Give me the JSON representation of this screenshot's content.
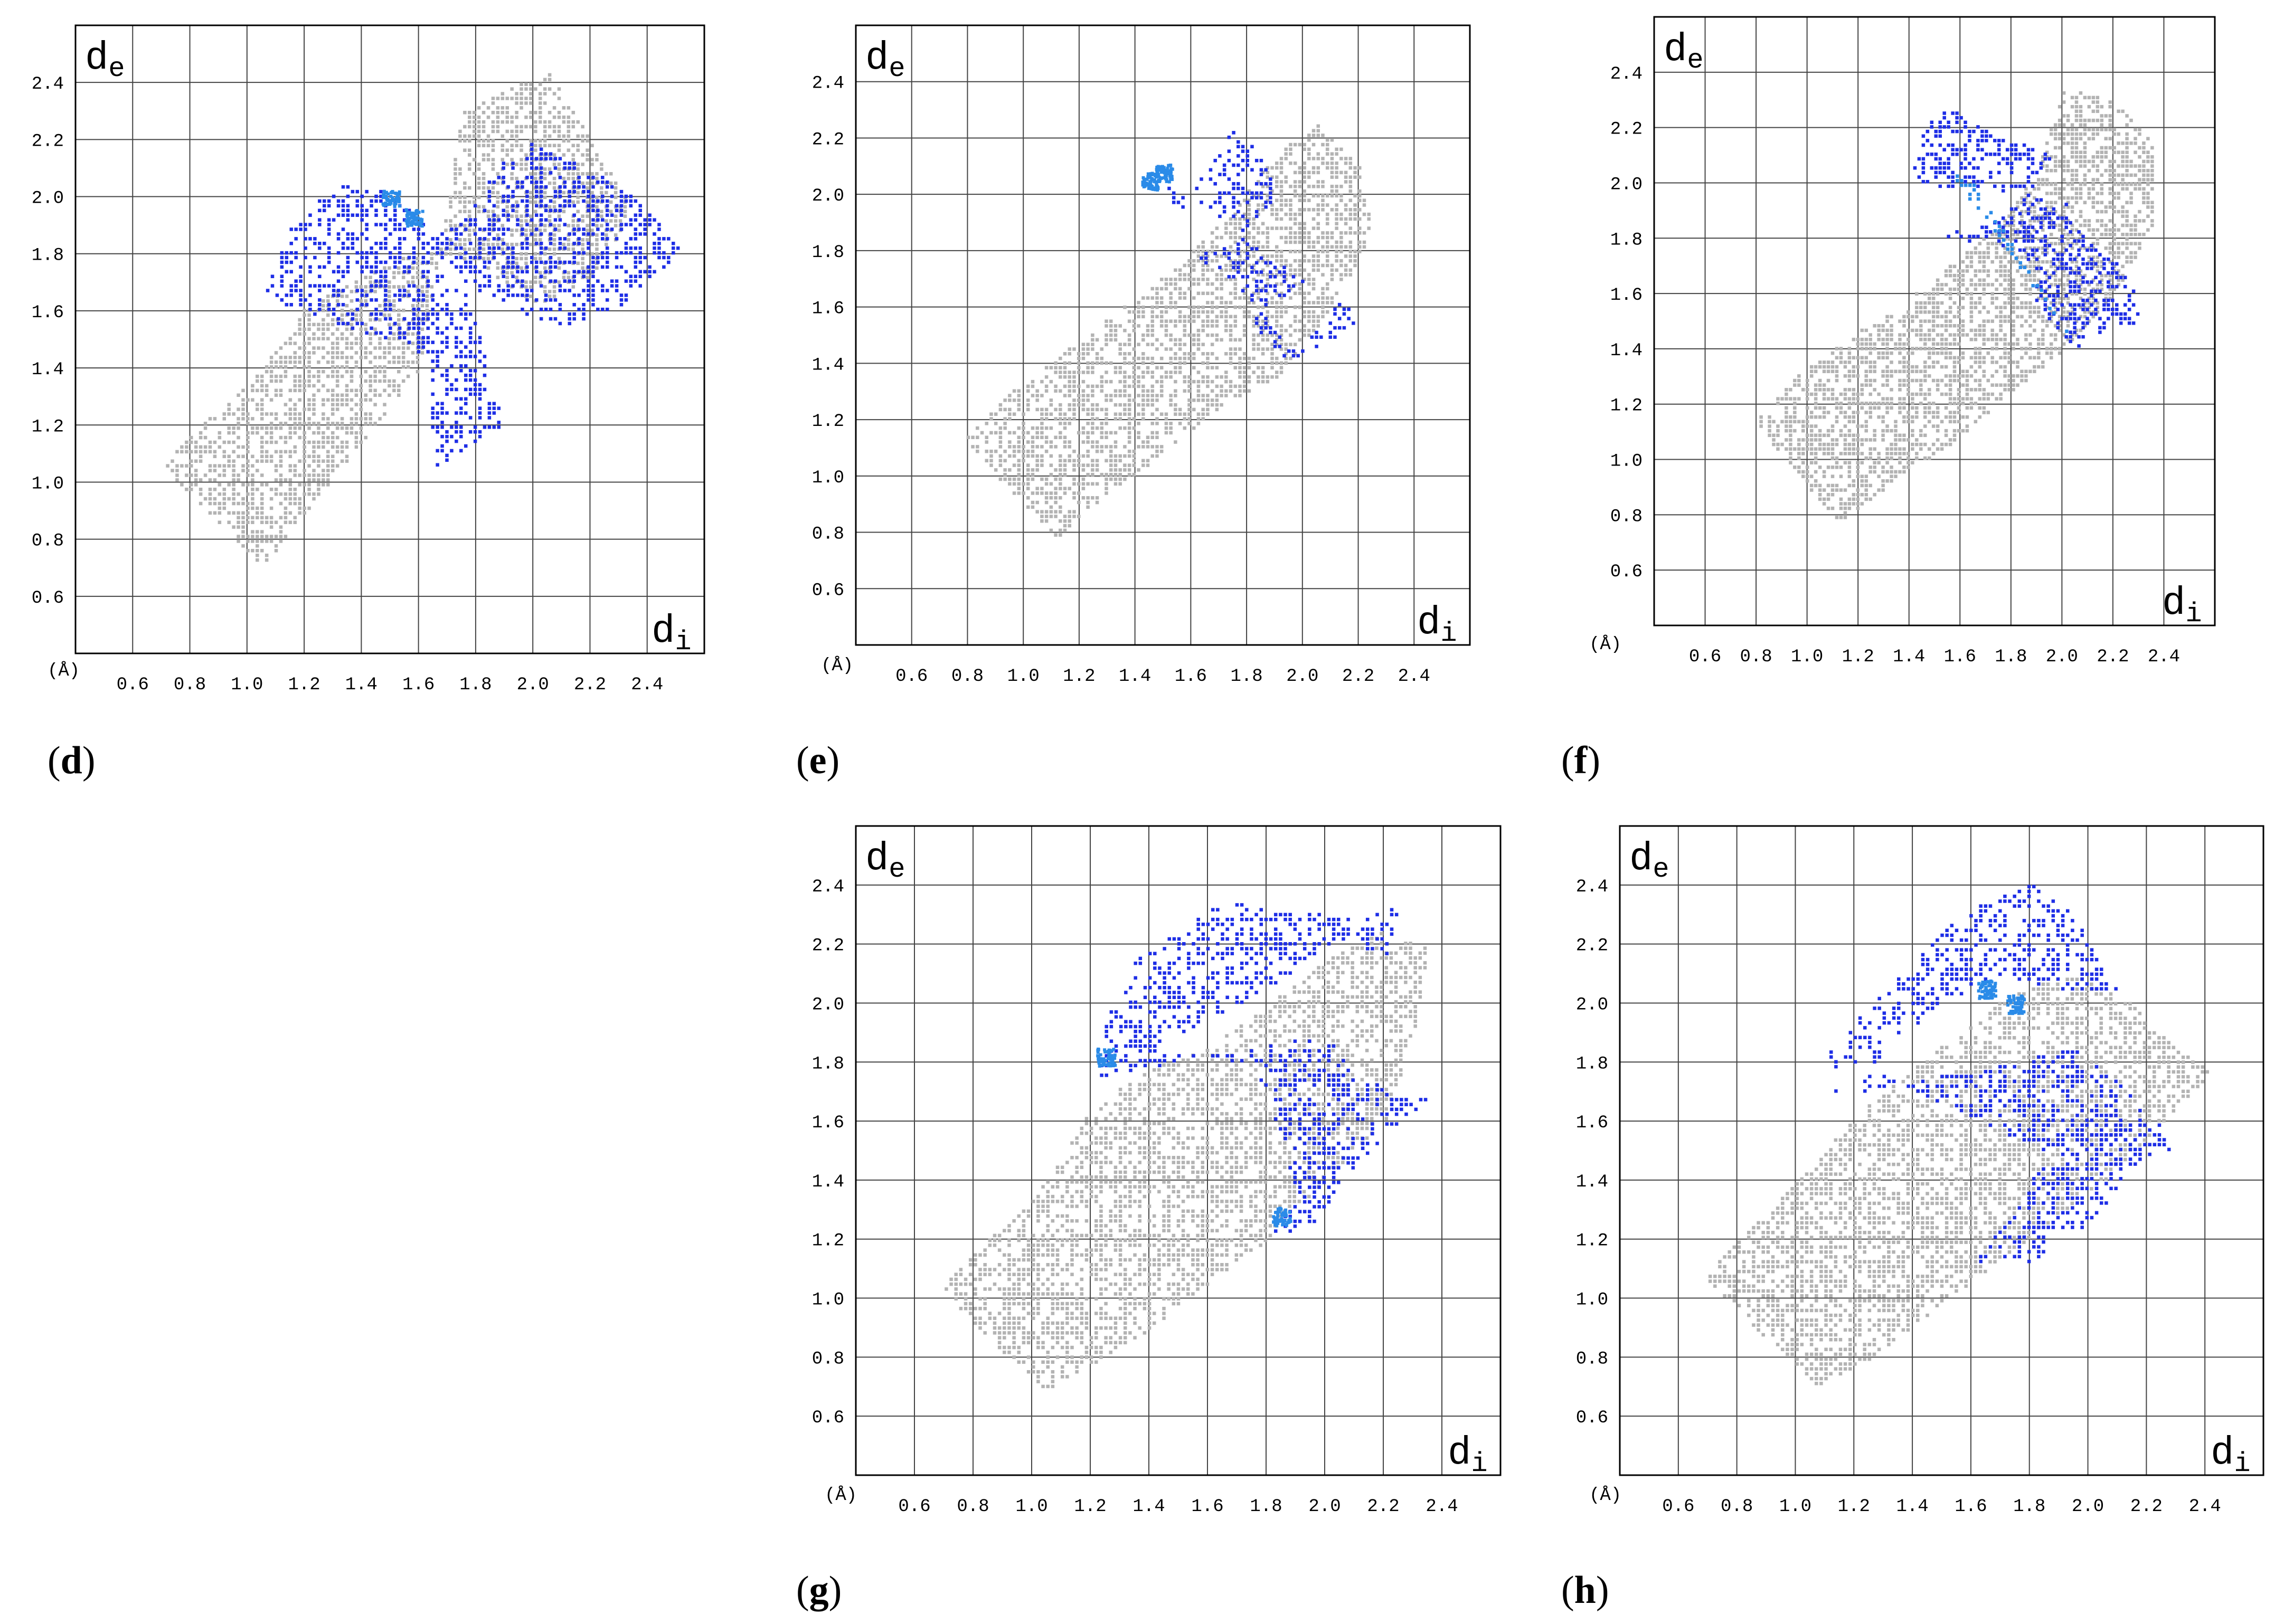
{
  "colors": {
    "background": "#ffffff",
    "frame": "#000000",
    "grid": "#444444",
    "scatter_base": "#b3b3b3",
    "highlight": "#1e2ee6",
    "highlight_dense": "#2a8be8"
  },
  "chart_data": [
    {
      "type": "scatter",
      "panel": "(d)",
      "panel_letter": "d",
      "xlabel_main": "d",
      "xlabel_sub": "i",
      "ylabel_main": "d",
      "ylabel_sub": "e",
      "unit_label": "(Å)",
      "xlim": [
        0.4,
        2.6
      ],
      "ylim": [
        0.4,
        2.6
      ],
      "x_ticks": [
        "0.6",
        "0.8",
        "1.0",
        "1.2",
        "1.4",
        "1.6",
        "1.8",
        "2.0",
        "2.2",
        "2.4"
      ],
      "y_ticks": [
        "0.6",
        "0.8",
        "1.0",
        "1.2",
        "1.4",
        "1.6",
        "1.8",
        "2.0",
        "2.2",
        "2.4"
      ],
      "grid": true,
      "series": [
        {
          "values": [
            [
              0.7,
              1.06
            ],
            [
              0.85,
              1.22
            ],
            [
              1.05,
              1.4
            ],
            [
              1.2,
              1.62
            ],
            [
              1.4,
              1.72
            ],
            [
              1.6,
              1.82
            ],
            [
              1.8,
              1.78
            ],
            [
              2.0,
              1.62
            ],
            [
              2.2,
              1.72
            ],
            [
              2.35,
              1.95
            ],
            [
              2.05,
              2.45
            ],
            [
              1.75,
              2.3
            ],
            [
              1.6,
              1.4
            ],
            [
              1.4,
              1.15
            ],
            [
              1.2,
              0.9
            ],
            [
              1.05,
              0.7
            ]
          ]
        },
        {
          "values": [
            [
              1.05,
              1.65
            ],
            [
              1.15,
              1.9
            ],
            [
              1.3,
              2.05
            ],
            [
              1.5,
              2.02
            ],
            [
              1.65,
              1.88
            ],
            [
              1.75,
              1.92
            ],
            [
              1.85,
              2.1
            ],
            [
              2.0,
              2.2
            ],
            [
              2.2,
              2.1
            ],
            [
              2.35,
              2.0
            ],
            [
              2.52,
              1.82
            ],
            [
              2.3,
              1.62
            ],
            [
              2.1,
              1.55
            ],
            [
              1.95,
              1.6
            ],
            [
              1.75,
              1.7
            ],
            [
              1.85,
              1.4
            ],
            [
              1.9,
              1.2
            ],
            [
              1.75,
              1.12
            ],
            [
              1.65,
              1.05
            ],
            [
              1.63,
              1.45
            ]
          ]
        },
        {
          "values": [
            [
              1.5,
              2.0
            ],
            [
              1.58,
              1.93
            ]
          ]
        }
      ]
    },
    {
      "type": "scatter",
      "panel": "(e)",
      "panel_letter": "e",
      "xlabel_main": "d",
      "xlabel_sub": "i",
      "ylabel_main": "d",
      "ylabel_sub": "e",
      "unit_label": "(Å)",
      "xlim": [
        0.4,
        2.6
      ],
      "ylim": [
        0.4,
        2.6
      ],
      "x_ticks": [
        "0.6",
        "0.8",
        "1.0",
        "1.2",
        "1.4",
        "1.6",
        "1.8",
        "2.0",
        "2.2",
        "2.4"
      ],
      "y_ticks": [
        "0.6",
        "0.8",
        "1.0",
        "1.2",
        "1.4",
        "1.6",
        "1.8",
        "2.0",
        "2.2",
        "2.4"
      ],
      "grid": true,
      "series": [
        {
          "values": [
            [
              0.78,
              1.13
            ],
            [
              0.95,
              1.3
            ],
            [
              1.15,
              1.45
            ],
            [
              1.35,
              1.6
            ],
            [
              1.55,
              1.75
            ],
            [
              1.75,
              1.95
            ],
            [
              1.9,
              2.15
            ],
            [
              2.05,
              2.25
            ],
            [
              2.2,
              2.1
            ],
            [
              2.25,
              1.85
            ],
            [
              2.1,
              1.6
            ],
            [
              1.9,
              1.35
            ],
            [
              1.7,
              1.25
            ],
            [
              1.45,
              1.05
            ],
            [
              1.25,
              0.9
            ],
            [
              1.12,
              0.78
            ]
          ]
        },
        {
          "values": [
            [
              1.5,
              2.05
            ],
            [
              1.55,
              1.92
            ],
            [
              1.65,
              2.12
            ],
            [
              1.75,
              2.25
            ],
            [
              1.85,
              2.15
            ],
            [
              1.9,
              2.0
            ],
            [
              1.75,
              1.82
            ],
            [
              1.6,
              1.8
            ],
            [
              1.85,
              1.6
            ],
            [
              1.95,
              1.45
            ],
            [
              2.05,
              1.52
            ],
            [
              2.15,
              1.65
            ],
            [
              2.2,
              1.55
            ],
            [
              1.95,
              1.4
            ],
            [
              1.8,
              1.55
            ],
            [
              2.0,
              1.7
            ]
          ]
        },
        {
          "values": [
            [
              1.45,
              2.05
            ],
            [
              1.5,
              2.08
            ]
          ]
        }
      ]
    },
    {
      "type": "scatter",
      "panel": "(f)",
      "panel_letter": "f",
      "xlabel_main": "d",
      "xlabel_sub": "i",
      "ylabel_main": "d",
      "ylabel_sub": "e",
      "unit_label": "(Å)",
      "xlim": [
        0.4,
        2.6
      ],
      "ylim": [
        0.4,
        2.6
      ],
      "x_ticks": [
        "0.6",
        "0.8",
        "1.0",
        "1.2",
        "1.4",
        "1.6",
        "1.8",
        "2.0",
        "2.2",
        "2.4"
      ],
      "y_ticks": [
        "0.6",
        "0.8",
        "1.0",
        "1.2",
        "1.4",
        "1.6",
        "1.8",
        "2.0",
        "2.2",
        "2.4"
      ],
      "grid": true,
      "series": [
        {
          "values": [
            [
              0.78,
              1.14
            ],
            [
              0.95,
              1.3
            ],
            [
              1.15,
              1.45
            ],
            [
              1.35,
              1.55
            ],
            [
              1.55,
              1.7
            ],
            [
              1.75,
              1.85
            ],
            [
              1.9,
              2.05
            ],
            [
              2.0,
              2.35
            ],
            [
              2.2,
              2.3
            ],
            [
              2.35,
              2.15
            ],
            [
              2.35,
              1.85
            ],
            [
              2.2,
              1.6
            ],
            [
              2.0,
              1.4
            ],
            [
              1.8,
              1.25
            ],
            [
              1.55,
              1.05
            ],
            [
              1.3,
              0.9
            ],
            [
              1.12,
              0.78
            ]
          ]
        },
        {
          "values": [
            [
              1.4,
              2.0
            ],
            [
              1.45,
              2.2
            ],
            [
              1.55,
              2.28
            ],
            [
              1.7,
              2.2
            ],
            [
              1.85,
              2.15
            ],
            [
              1.95,
              2.1
            ],
            [
              1.85,
              1.95
            ],
            [
              1.7,
              1.85
            ],
            [
              1.5,
              1.82
            ],
            [
              1.85,
              1.75
            ],
            [
              1.9,
              1.55
            ],
            [
              2.05,
              1.4
            ],
            [
              2.2,
              1.5
            ],
            [
              2.32,
              1.48
            ],
            [
              2.25,
              1.7
            ],
            [
              2.1,
              1.8
            ],
            [
              2.0,
              1.95
            ]
          ]
        },
        {
          "values": [
            [
              1.55,
              2.05
            ],
            [
              1.65,
              2.0
            ],
            [
              2.05,
              1.42
            ]
          ]
        }
      ]
    },
    {
      "type": "scatter",
      "panel": "(g)",
      "panel_letter": "g",
      "xlabel_main": "d",
      "xlabel_sub": "i",
      "ylabel_main": "d",
      "ylabel_sub": "e",
      "unit_label": "(Å)",
      "xlim": [
        0.4,
        2.6
      ],
      "ylim": [
        0.4,
        2.6
      ],
      "x_ticks": [
        "0.6",
        "0.8",
        "1.0",
        "1.2",
        "1.4",
        "1.6",
        "1.8",
        "2.0",
        "2.2",
        "2.4"
      ],
      "y_ticks": [
        "0.6",
        "0.8",
        "1.0",
        "1.2",
        "1.4",
        "1.6",
        "1.8",
        "2.0",
        "2.2",
        "2.4"
      ],
      "grid": true,
      "series": [
        {
          "values": [
            [
              0.67,
              1.04
            ],
            [
              0.85,
              1.2
            ],
            [
              1.05,
              1.4
            ],
            [
              1.2,
              1.65
            ],
            [
              1.4,
              1.78
            ],
            [
              1.6,
              1.85
            ],
            [
              1.8,
              2.0
            ],
            [
              2.0,
              2.15
            ],
            [
              2.2,
              2.25
            ],
            [
              2.35,
              2.2
            ],
            [
              2.3,
              1.9
            ],
            [
              2.2,
              1.6
            ],
            [
              2.0,
              1.4
            ],
            [
              1.8,
              1.2
            ],
            [
              1.6,
              1.05
            ],
            [
              1.4,
              0.9
            ],
            [
              1.2,
              0.78
            ],
            [
              1.04,
              0.69
            ]
          ]
        },
        {
          "values": [
            [
              1.2,
              1.75
            ],
            [
              1.25,
              1.95
            ],
            [
              1.35,
              2.15
            ],
            [
              1.5,
              2.25
            ],
            [
              1.65,
              2.35
            ],
            [
              1.85,
              2.32
            ],
            [
              2.05,
              2.3
            ],
            [
              2.25,
              2.33
            ],
            [
              2.2,
              2.15
            ],
            [
              2.0,
              2.2
            ],
            [
              1.8,
              2.05
            ],
            [
              1.6,
              1.95
            ],
            [
              1.4,
              1.85
            ],
            [
              1.75,
              1.8
            ],
            [
              1.85,
              1.55
            ],
            [
              1.9,
              1.35
            ],
            [
              1.8,
              1.2
            ],
            [
              1.95,
              1.25
            ],
            [
              2.1,
              1.45
            ],
            [
              2.25,
              1.6
            ],
            [
              2.35,
              1.68
            ],
            [
              2.1,
              1.75
            ],
            [
              2.0,
              1.9
            ]
          ]
        },
        {
          "values": [
            [
              1.25,
              1.82
            ],
            [
              1.85,
              1.28
            ]
          ]
        }
      ]
    },
    {
      "type": "scatter",
      "panel": "(h)",
      "panel_letter": "h",
      "xlabel_main": "d",
      "xlabel_sub": "i",
      "ylabel_main": "d",
      "ylabel_sub": "e",
      "unit_label": "(Å)",
      "xlim": [
        0.4,
        2.6
      ],
      "ylim": [
        0.4,
        2.6
      ],
      "x_ticks": [
        "0.6",
        "0.8",
        "1.0",
        "1.2",
        "1.4",
        "1.6",
        "1.8",
        "2.0",
        "2.2",
        "2.4"
      ],
      "y_ticks": [
        "0.6",
        "0.8",
        "1.0",
        "1.2",
        "1.4",
        "1.6",
        "1.8",
        "2.0",
        "2.2",
        "2.4"
      ],
      "grid": true,
      "series": [
        {
          "values": [
            [
              0.67,
              1.08
            ],
            [
              0.85,
              1.25
            ],
            [
              1.05,
              1.45
            ],
            [
              1.2,
              1.62
            ],
            [
              1.4,
              1.78
            ],
            [
              1.55,
              1.9
            ],
            [
              1.75,
              2.05
            ],
            [
              1.95,
              2.1
            ],
            [
              2.15,
              2.0
            ],
            [
              2.3,
              1.85
            ],
            [
              2.42,
              1.77
            ],
            [
              2.25,
              1.6
            ],
            [
              2.05,
              1.4
            ],
            [
              1.85,
              1.25
            ],
            [
              1.65,
              1.1
            ],
            [
              1.45,
              0.95
            ],
            [
              1.25,
              0.8
            ],
            [
              1.08,
              0.7
            ]
          ]
        },
        {
          "values": [
            [
              1.1,
              1.85
            ],
            [
              1.15,
              1.65
            ],
            [
              1.12,
              1.75
            ],
            [
              1.2,
              1.95
            ],
            [
              1.35,
              2.1
            ],
            [
              1.5,
              2.25
            ],
            [
              1.65,
              2.35
            ],
            [
              1.8,
              2.42
            ],
            [
              1.95,
              2.3
            ],
            [
              2.1,
              2.05
            ],
            [
              1.9,
              2.05
            ],
            [
              1.7,
              2.1
            ],
            [
              1.5,
              2.0
            ],
            [
              1.3,
              1.85
            ],
            [
              1.2,
              1.7
            ],
            [
              1.95,
              1.85
            ],
            [
              2.15,
              1.7
            ],
            [
              2.3,
              1.52
            ],
            [
              2.15,
              1.45
            ],
            [
              2.0,
              1.25
            ],
            [
              1.8,
              1.13
            ],
            [
              1.6,
              1.13
            ],
            [
              1.75,
              1.3
            ],
            [
              1.85,
              1.5
            ]
          ]
        },
        {
          "values": [
            [
              1.65,
              2.05
            ],
            [
              1.75,
              2.0
            ]
          ]
        }
      ]
    }
  ]
}
